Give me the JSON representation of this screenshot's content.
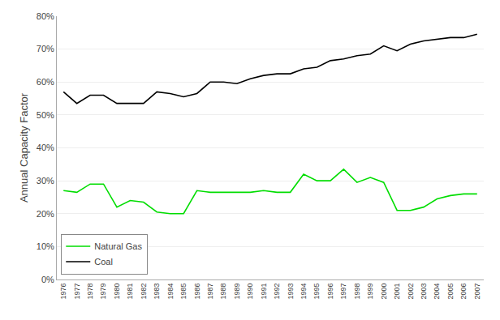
{
  "chart_data": {
    "type": "line",
    "ylabel": "Annual Capacity Factor",
    "x": [
      1976,
      1977,
      1978,
      1979,
      1980,
      1981,
      1982,
      1983,
      1984,
      1985,
      1986,
      1987,
      1988,
      1989,
      1990,
      1991,
      1992,
      1993,
      1994,
      1995,
      1996,
      1997,
      1998,
      1999,
      2000,
      2001,
      2002,
      2003,
      2004,
      2005,
      2006,
      2007
    ],
    "series": [
      {
        "name": "Natural Gas",
        "color": "#00dd00",
        "values": [
          0.27,
          0.265,
          0.29,
          0.29,
          0.22,
          0.24,
          0.235,
          0.205,
          0.2,
          0.2,
          0.27,
          0.265,
          0.265,
          0.265,
          0.265,
          0.27,
          0.265,
          0.265,
          0.32,
          0.3,
          0.3,
          0.335,
          0.295,
          0.31,
          0.295,
          0.21,
          0.21,
          0.22,
          0.245,
          0.255,
          0.26,
          0.26
        ]
      },
      {
        "name": "Coal",
        "color": "#000000",
        "values": [
          0.57,
          0.535,
          0.56,
          0.56,
          0.535,
          0.535,
          0.535,
          0.57,
          0.565,
          0.555,
          0.565,
          0.6,
          0.6,
          0.595,
          0.61,
          0.62,
          0.625,
          0.625,
          0.64,
          0.645,
          0.665,
          0.67,
          0.68,
          0.685,
          0.71,
          0.695,
          0.715,
          0.725,
          0.73,
          0.735,
          0.735,
          0.745
        ]
      }
    ],
    "xlim": [
      1975.5,
      2007.5
    ],
    "xticks": [
      1976,
      1977,
      1978,
      1979,
      1980,
      1981,
      1982,
      1983,
      1984,
      1985,
      1986,
      1987,
      1988,
      1989,
      1990,
      1991,
      1992,
      1993,
      1994,
      1995,
      1996,
      1997,
      1998,
      1999,
      2000,
      2001,
      2002,
      2003,
      2004,
      2005,
      2006,
      2007
    ],
    "ylim": [
      0,
      0.8
    ],
    "yticks": [
      {
        "value": 0.0,
        "label": "0%"
      },
      {
        "value": 0.1,
        "label": "10%"
      },
      {
        "value": 0.2,
        "label": "20%"
      },
      {
        "value": 0.3,
        "label": "30%"
      },
      {
        "value": 0.4,
        "label": "40%"
      },
      {
        "value": 0.5,
        "label": "50%"
      },
      {
        "value": 0.6,
        "label": "60%"
      },
      {
        "value": 0.7,
        "label": "70%"
      },
      {
        "value": 0.8,
        "label": "80%"
      }
    ],
    "grid": true,
    "legend": "lower left"
  }
}
